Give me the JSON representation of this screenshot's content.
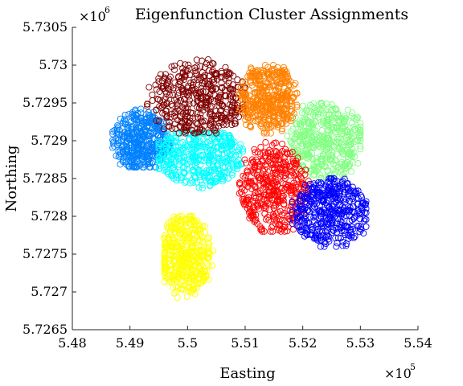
{
  "chart_data": {
    "type": "scatter",
    "title": "Eigenfunction Cluster Assignments",
    "xlabel": "Easting",
    "ylabel": "Northing",
    "xlim": [
      548000,
      554000
    ],
    "ylim": [
      5726500,
      5730500
    ],
    "x_ticks": [
      548000,
      549000,
      550000,
      551000,
      552000,
      553000,
      554000
    ],
    "x_tick_labels": [
      "5.48",
      "5.49",
      "5.5",
      "5.51",
      "5.52",
      "5.53",
      "5.54"
    ],
    "y_ticks": [
      5726500,
      5727000,
      5727500,
      5728000,
      5728500,
      5729000,
      5729500,
      5730000,
      5730500
    ],
    "y_tick_labels": [
      "5.7265",
      "5.727",
      "5.7275",
      "5.728",
      "5.7285",
      "5.729",
      "5.7295",
      "5.73",
      "5.7305"
    ],
    "x_exponent": {
      "base": "×10",
      "power": "5"
    },
    "y_exponent": {
      "base": "×10",
      "power": "6"
    },
    "marker": "open-circle",
    "grid": false,
    "legend": "none",
    "series": [
      {
        "color": "#0080ff",
        "x_range": [
          548700,
          549700
        ],
        "y_range": [
          5728650,
          5729450
        ],
        "center": [
          549200,
          5729000
        ]
      },
      {
        "color": "#00ffff",
        "x_range": [
          549500,
          551000
        ],
        "y_range": [
          5728300,
          5729100
        ],
        "center": [
          550200,
          5728800
        ]
      },
      {
        "color": "#800000",
        "x_range": [
          549300,
          551000
        ],
        "y_range": [
          5729100,
          5730100
        ],
        "center": [
          550200,
          5729550
        ]
      },
      {
        "color": "#ff8000",
        "x_range": [
          550900,
          551900
        ],
        "y_range": [
          5729100,
          5730000
        ],
        "center": [
          551400,
          5729550
        ]
      },
      {
        "color": "#80ff80",
        "x_range": [
          551700,
          553000
        ],
        "y_range": [
          5728500,
          5729500
        ],
        "center": [
          552400,
          5729000
        ]
      },
      {
        "color": "#ff0000",
        "x_range": [
          550900,
          552100
        ],
        "y_range": [
          5727800,
          5729000
        ],
        "center": [
          551500,
          5728350
        ]
      },
      {
        "color": "#0000ff",
        "x_range": [
          551800,
          553100
        ],
        "y_range": [
          5727600,
          5728500
        ],
        "center": [
          552500,
          5728050
        ]
      },
      {
        "color": "#ffff00",
        "x_range": [
          549600,
          550500
        ],
        "y_range": [
          5726900,
          5728000
        ],
        "center": [
          549950,
          5727500
        ]
      }
    ]
  }
}
